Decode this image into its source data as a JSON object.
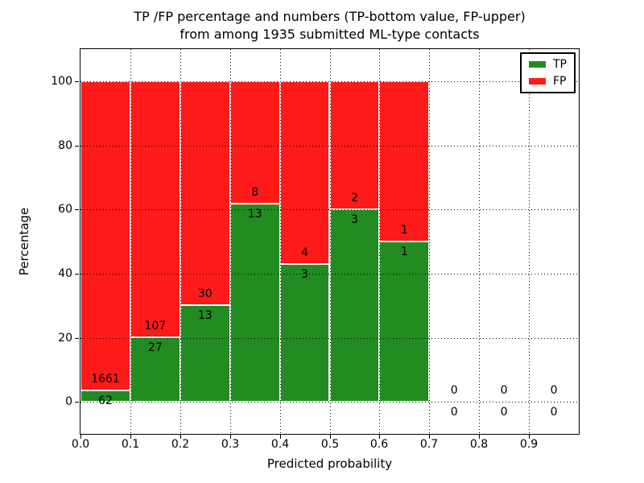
{
  "header": {
    "title_line1": "TP /FP percentage and numbers (TP-bottom value, FP-upper)",
    "title_line2": "from among 1935 submitted ML-type contacts"
  },
  "chart_data": {
    "type": "bar",
    "stacked": true,
    "normalized_to_percent": true,
    "title": "TP /FP percentage and numbers (TP-bottom value, FP-upper)\nfrom among 1935 submitted ML-type contacts",
    "xlabel": "Predicted probability",
    "ylabel": "Percentage",
    "xlim": [
      0.0,
      1.0
    ],
    "ylim": [
      -10,
      110
    ],
    "xtick_labels": [
      "0.0",
      "0.1",
      "0.2",
      "0.3",
      "0.4",
      "0.5",
      "0.6",
      "0.7",
      "0.8",
      "0.9"
    ],
    "ytick_values": [
      0,
      20,
      40,
      60,
      80,
      100
    ],
    "grid": "dotted",
    "total_submitted_contacts": 1935,
    "bins": [
      {
        "range": [
          0.0,
          0.1
        ],
        "tp": 62,
        "fp": 1661
      },
      {
        "range": [
          0.1,
          0.2
        ],
        "tp": 27,
        "fp": 107
      },
      {
        "range": [
          0.2,
          0.3
        ],
        "tp": 13,
        "fp": 30
      },
      {
        "range": [
          0.3,
          0.4
        ],
        "tp": 13,
        "fp": 8
      },
      {
        "range": [
          0.4,
          0.5
        ],
        "tp": 3,
        "fp": 4
      },
      {
        "range": [
          0.5,
          0.6
        ],
        "tp": 3,
        "fp": 2
      },
      {
        "range": [
          0.6,
          0.7
        ],
        "tp": 1,
        "fp": 1
      },
      {
        "range": [
          0.7,
          0.8
        ],
        "tp": 0,
        "fp": 0
      },
      {
        "range": [
          0.8,
          0.9
        ],
        "tp": 0,
        "fp": 0
      },
      {
        "range": [
          0.9,
          1.0
        ],
        "tp": 0,
        "fp": 0
      }
    ],
    "legend": {
      "position": "upper right",
      "items": [
        {
          "label": "TP",
          "color": "#228B22"
        },
        {
          "label": "FP",
          "color": "#FF1A1A"
        }
      ]
    },
    "colors": {
      "tp": "#228B22",
      "fp": "#FF1A1A",
      "bar_edge": "#FFFFFF",
      "grid": "#000000",
      "text": "#000000",
      "background": "#FFFFFF"
    }
  }
}
